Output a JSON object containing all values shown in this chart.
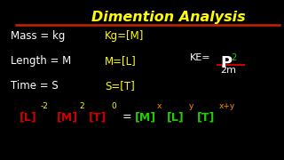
{
  "background_color": "#000000",
  "title": "Dimention Analysis",
  "title_color": "#ffff00",
  "title_underline_color": "#cc2200",
  "line1_left": "Mass = kg",
  "line2_left": "Length = M",
  "line3_left": "Time = S",
  "line1_right": "Kg=[M]",
  "line2_right": "M=[L]",
  "line3_right": "S=[T]",
  "white_color": "#ffffff",
  "yellow_color": "#ffff00",
  "red_color": "#cc0000",
  "green_color": "#22cc00",
  "orange_color": "#ff8800"
}
